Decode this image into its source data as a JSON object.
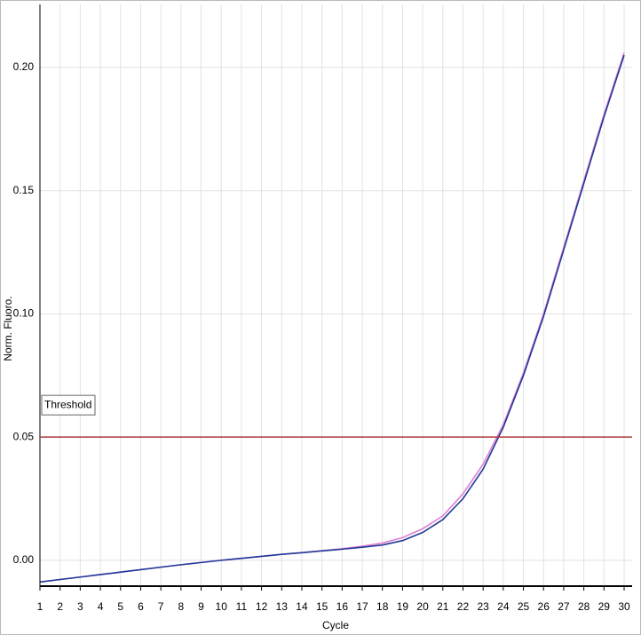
{
  "chart_data": {
    "type": "line",
    "y_label": "Norm. Fluoro.",
    "x_label": "Cycle",
    "x": [
      1,
      2,
      3,
      4,
      5,
      6,
      7,
      8,
      9,
      10,
      11,
      12,
      13,
      14,
      15,
      16,
      17,
      18,
      19,
      20,
      21,
      22,
      23,
      24,
      25,
      26,
      27,
      28,
      29,
      30
    ],
    "series": [
      {
        "color": "#e080d0",
        "values": [
          -0.0088,
          -0.0078,
          -0.0068,
          -0.0058,
          -0.0048,
          -0.0038,
          -0.0028,
          -0.0018,
          -0.0009,
          0.0,
          0.0008,
          0.0016,
          0.0024,
          0.0031,
          0.0039,
          0.0047,
          0.0057,
          0.007,
          0.0092,
          0.0128,
          0.018,
          0.027,
          0.039,
          0.055,
          0.076,
          0.1,
          0.127,
          0.154,
          0.181,
          0.206
        ]
      },
      {
        "color": "#1f3a9a",
        "values": [
          -0.0088,
          -0.0078,
          -0.0068,
          -0.0058,
          -0.0048,
          -0.0038,
          -0.0028,
          -0.0018,
          -0.0009,
          0.0,
          0.0008,
          0.0016,
          0.0024,
          0.0031,
          0.0038,
          0.0045,
          0.0053,
          0.0062,
          0.008,
          0.0113,
          0.0165,
          0.025,
          0.037,
          0.054,
          0.075,
          0.099,
          0.126,
          0.153,
          0.18,
          0.205
        ]
      }
    ],
    "threshold": {
      "label": "Threshold",
      "value": 0.05,
      "color": "#b03a3a"
    },
    "xlim": [
      1,
      30
    ],
    "xticks": [
      1,
      2,
      3,
      4,
      5,
      6,
      7,
      8,
      9,
      10,
      11,
      12,
      13,
      14,
      15,
      16,
      17,
      18,
      19,
      20,
      21,
      22,
      23,
      24,
      25,
      26,
      27,
      28,
      29,
      30
    ],
    "ylim": [
      -0.0105,
      0.2256
    ],
    "yticks": [
      {
        "value": 0,
        "label": "0.00"
      },
      {
        "value": 0.05,
        "label": "0.05"
      },
      {
        "value": 0.1,
        "label": "0.10"
      },
      {
        "value": 0.15,
        "label": "0.15"
      },
      {
        "value": 0.2,
        "label": "0.20"
      }
    ],
    "grid": true
  }
}
